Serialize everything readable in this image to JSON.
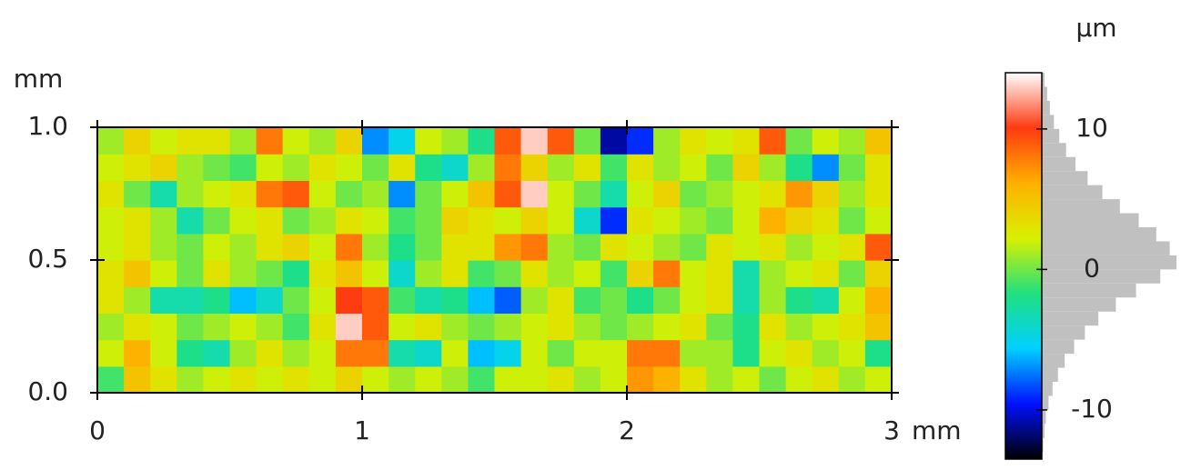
{
  "chart_data": {
    "type": "heatmap",
    "x_label": "mm",
    "y_label": "mm",
    "colorbar_label": "µm",
    "x": [
      0.05,
      0.15,
      0.25,
      0.35,
      0.45,
      0.55,
      0.65,
      0.75,
      0.85,
      0.95,
      1.05,
      1.15,
      1.25,
      1.35,
      1.45,
      1.55,
      1.65,
      1.75,
      1.85,
      1.95,
      2.05,
      2.15,
      2.25,
      2.35,
      2.45,
      2.55,
      2.65,
      2.75,
      2.85,
      2.95
    ],
    "y": [
      0.05,
      0.15,
      0.25,
      0.35,
      0.45,
      0.55,
      0.65,
      0.75,
      0.85,
      0.95
    ],
    "z": [
      [
        -1,
        5,
        3,
        1,
        2,
        3,
        2,
        3,
        2,
        4,
        2,
        1,
        2,
        1,
        -1,
        2,
        2,
        3,
        1,
        2,
        7,
        6,
        3,
        1,
        2,
        0,
        2,
        3,
        1,
        2
      ],
      [
        2,
        6,
        2,
        -2,
        -3,
        1,
        3,
        1,
        2,
        8,
        8,
        -3,
        -4,
        2,
        -6,
        -5,
        2,
        0,
        2,
        2,
        8,
        8,
        1,
        1,
        -2,
        2,
        3,
        1,
        2,
        -2
      ],
      [
        1,
        3,
        2,
        0,
        1,
        2,
        1,
        -1,
        3,
        13,
        9,
        2,
        3,
        1,
        0,
        1,
        2,
        3,
        1,
        0,
        1,
        2,
        3,
        0,
        -2,
        3,
        1,
        2,
        3,
        5
      ],
      [
        3,
        1,
        -3,
        -3,
        -2,
        -6,
        -4,
        0,
        2,
        10,
        9,
        -1,
        -3,
        -2,
        -6,
        -8,
        1,
        3,
        -1,
        0,
        -2,
        0,
        2,
        3,
        -3,
        1,
        -2,
        -3,
        2,
        6
      ],
      [
        3,
        5,
        2,
        0,
        3,
        1,
        0,
        -2,
        3,
        5,
        2,
        -4,
        1,
        3,
        -1,
        0,
        3,
        1,
        2,
        -1,
        4,
        8,
        2,
        3,
        -3,
        1,
        2,
        3,
        0,
        4
      ],
      [
        2,
        3,
        1,
        0,
        2,
        1,
        3,
        4,
        2,
        8,
        1,
        -2,
        0,
        3,
        3,
        7,
        8,
        1,
        0,
        3,
        2,
        1,
        0,
        3,
        2,
        3,
        1,
        2,
        3,
        9
      ],
      [
        2,
        3,
        1,
        -3,
        0,
        2,
        3,
        0,
        1,
        3,
        2,
        -1,
        0,
        4,
        3,
        2,
        4,
        2,
        -4,
        -9,
        3,
        2,
        1,
        0,
        2,
        6,
        4,
        3,
        0,
        2
      ],
      [
        3,
        0,
        -3,
        1,
        2,
        3,
        8,
        9,
        2,
        0,
        1,
        -7,
        0,
        2,
        5,
        9,
        13,
        2,
        0,
        -3,
        2,
        4,
        0,
        1,
        2,
        3,
        7,
        4,
        1,
        3
      ],
      [
        2,
        3,
        4,
        1,
        0,
        -1,
        2,
        1,
        3,
        2,
        0,
        3,
        -2,
        -4,
        1,
        8,
        4,
        1,
        3,
        -1,
        3,
        1,
        2,
        0,
        4,
        1,
        -2,
        -7,
        0,
        3
      ],
      [
        1,
        4,
        2,
        3,
        3,
        1,
        8,
        2,
        1,
        4,
        -7,
        -5,
        2,
        1,
        -2,
        9,
        13,
        9,
        0,
        -11,
        -9,
        1,
        3,
        2,
        3,
        9,
        0,
        2,
        1,
        5
      ]
    ],
    "xlim": [
      0,
      3
    ],
    "xticks": [
      0,
      1,
      2,
      3
    ],
    "ylim": [
      0,
      1
    ],
    "yticks": [
      {
        "value": 0,
        "label": "0.0"
      },
      0.5,
      {
        "value": 1,
        "label": "1.0"
      }
    ],
    "zlim": [
      -13.5,
      14
    ],
    "zticks": [
      -10,
      0,
      10
    ],
    "colorscale": [
      "#000000",
      "#0010ff",
      "#00d0ff",
      "#20e080",
      "#d8f000",
      "#ffb000",
      "#ff3a10",
      "#ffffff"
    ],
    "histogram": {
      "color": "#c0c0c0",
      "bins": [
        -13,
        -12,
        -11,
        -10,
        -9,
        -8,
        -7,
        -6,
        -5,
        -4,
        -3,
        -2,
        -1,
        0,
        1,
        2,
        3,
        4,
        5,
        6,
        7,
        8,
        9,
        10,
        11,
        12,
        13,
        14
      ],
      "counts": [
        1,
        2,
        3,
        5,
        8,
        12,
        17,
        24,
        32,
        42,
        55,
        70,
        88,
        100,
        95,
        85,
        72,
        58,
        45,
        34,
        25,
        18,
        13,
        9,
        6,
        4,
        2
      ]
    }
  }
}
